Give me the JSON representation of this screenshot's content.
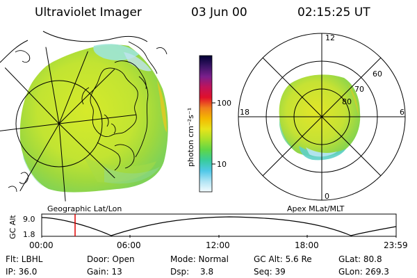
{
  "header": {
    "instrument": "Ultraviolet Imager",
    "date": "03 Jun 00",
    "time": "02:15:25 UT"
  },
  "colorbar": {
    "unit_label": "photon cm⁻²s⁻¹",
    "ticks": [
      "100",
      "10"
    ],
    "colors": [
      "#000033",
      "#3a1466",
      "#7a1f8c",
      "#c0135a",
      "#e0102a",
      "#f0801c",
      "#f4b800",
      "#e8e41a",
      "#a8e02a",
      "#5ed648",
      "#38cc9c",
      "#50c8e8",
      "#b0e4f4",
      "#f4fcff"
    ]
  },
  "left_panel": {
    "caption": "Geographic Lat/Lon"
  },
  "right_panel": {
    "caption": "Apex MLat/MLT",
    "mlt_labels": {
      "top": "12",
      "left": "18",
      "right": "6",
      "bottom": "0"
    },
    "lat_labels": [
      "60",
      "70",
      "80"
    ]
  },
  "altitude_plot": {
    "ylabel": "GC Alt",
    "y_ticks": [
      "9.0",
      "1.8"
    ],
    "x_ticks": [
      "00:00",
      "06:00",
      "12:00",
      "18:00",
      "23:59"
    ],
    "current_time_hours": 2.26,
    "marker_color": "#e00000"
  },
  "info": {
    "flt": "Flt: LBHL",
    "door": "Door: Open",
    "mode": "Mode: Normal",
    "gcalt": "GC Alt: 5.6 Re",
    "glat": "GLat: 80.8",
    "ip": "IP: 36.0",
    "gain": "Gain: 13",
    "dsp_label": "Dsp:",
    "dsp_value": "3.8",
    "seq": "Seq: 39",
    "glon": "GLon: 269.3"
  }
}
